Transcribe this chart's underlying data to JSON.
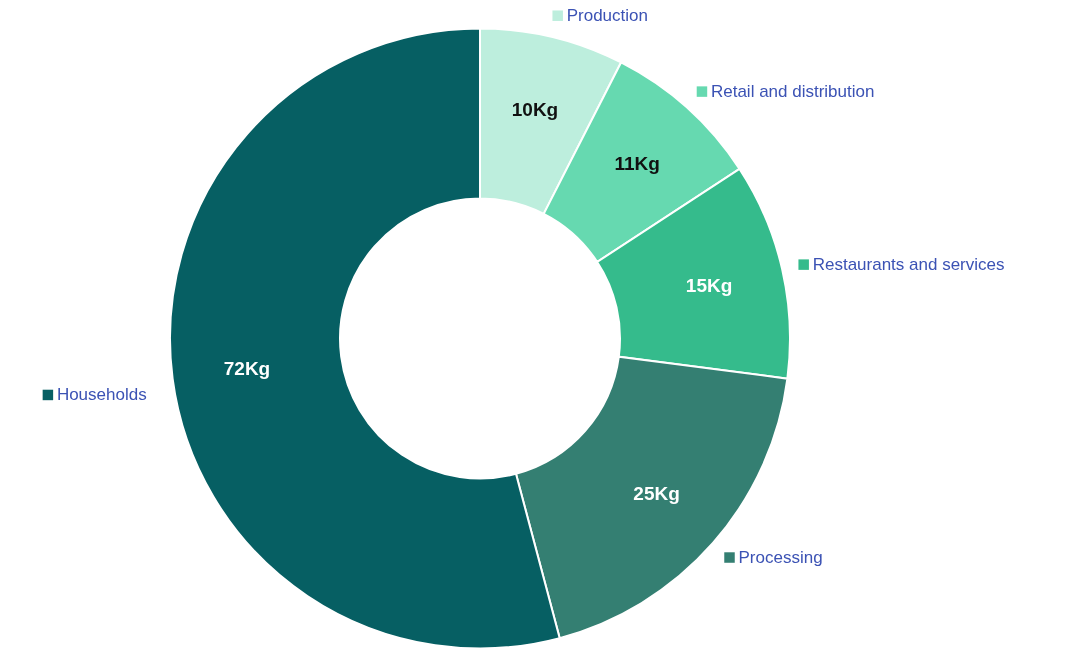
{
  "chart_data": {
    "type": "donut",
    "categories": [
      "Production",
      "Retail and distribution",
      "Restaurants and services",
      "Processing",
      "Households"
    ],
    "values": [
      10,
      11,
      15,
      25,
      72
    ],
    "colors": [
      "#bdeedd",
      "#66d9b0",
      "#35bb8c",
      "#347f72",
      "#065f63"
    ],
    "value_labels": [
      "10Kg",
      "11Kg",
      "15Kg",
      "25Kg",
      "72Kg"
    ],
    "legend": "right"
  }
}
